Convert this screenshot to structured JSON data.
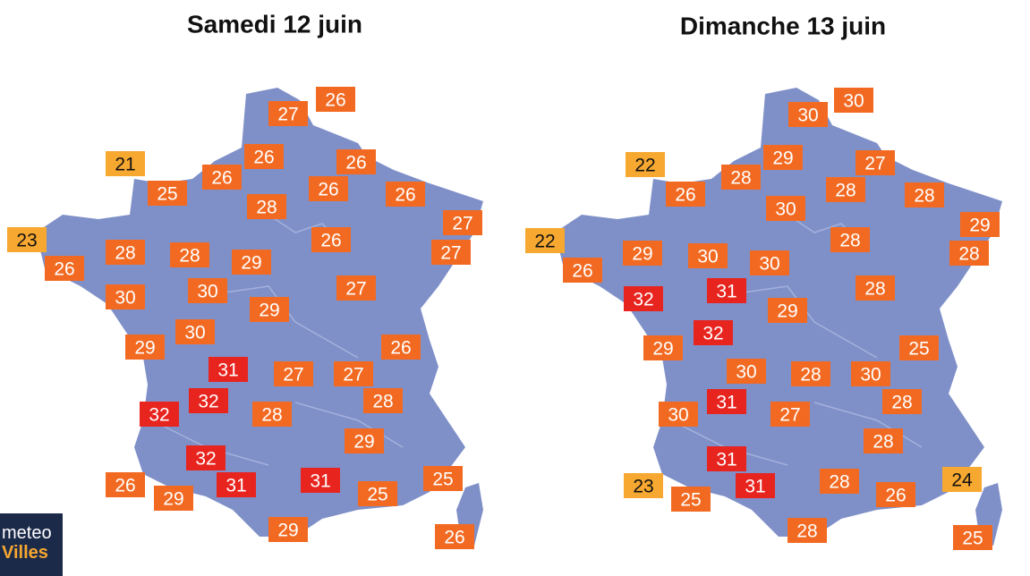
{
  "maps": [
    {
      "title": "Samedi 12 juin",
      "labels": [
        {
          "value": 26,
          "color": "#f26a22"
        },
        {
          "value": 27,
          "color": "#f26a22"
        },
        {
          "value": 21,
          "color": "#f7a830"
        },
        {
          "value": 26,
          "color": "#f26a22"
        },
        {
          "value": 26,
          "color": "#f26a22"
        },
        {
          "value": 25,
          "color": "#f26a22"
        },
        {
          "value": 26,
          "color": "#f26a22"
        },
        {
          "value": 26,
          "color": "#f26a22"
        },
        {
          "value": 26,
          "color": "#f26a22"
        },
        {
          "value": 28,
          "color": "#f26a22"
        },
        {
          "value": 27,
          "color": "#f26a22"
        },
        {
          "value": 23,
          "color": "#f7a830"
        },
        {
          "value": 26,
          "color": "#f26a22"
        },
        {
          "value": 27,
          "color": "#f26a22"
        },
        {
          "value": 28,
          "color": "#f26a22"
        },
        {
          "value": 28,
          "color": "#f26a22"
        },
        {
          "value": 29,
          "color": "#f26a22"
        },
        {
          "value": 26,
          "color": "#f26a22"
        },
        {
          "value": 30,
          "color": "#f26a22"
        },
        {
          "value": 30,
          "color": "#f26a22"
        },
        {
          "value": 27,
          "color": "#f26a22"
        },
        {
          "value": 29,
          "color": "#f26a22"
        },
        {
          "value": 30,
          "color": "#f26a22"
        },
        {
          "value": 29,
          "color": "#f26a22"
        },
        {
          "value": 26,
          "color": "#f26a22"
        },
        {
          "value": 31,
          "color": "#e8241f"
        },
        {
          "value": 27,
          "color": "#f26a22"
        },
        {
          "value": 27,
          "color": "#f26a22"
        },
        {
          "value": 32,
          "color": "#e8241f"
        },
        {
          "value": 28,
          "color": "#f26a22"
        },
        {
          "value": 32,
          "color": "#e8241f"
        },
        {
          "value": 28,
          "color": "#f26a22"
        },
        {
          "value": 29,
          "color": "#f26a22"
        },
        {
          "value": 32,
          "color": "#e8241f"
        },
        {
          "value": 31,
          "color": "#e8241f"
        },
        {
          "value": 31,
          "color": "#e8241f"
        },
        {
          "value": 25,
          "color": "#f26a22"
        },
        {
          "value": 26,
          "color": "#f26a22"
        },
        {
          "value": 29,
          "color": "#f26a22"
        },
        {
          "value": 25,
          "color": "#f26a22"
        },
        {
          "value": 29,
          "color": "#f26a22"
        },
        {
          "value": 26,
          "color": "#f26a22"
        }
      ]
    },
    {
      "title": "Dimanche 13 juin",
      "labels": [
        {
          "value": 30,
          "color": "#f26a22"
        },
        {
          "value": 30,
          "color": "#f26a22"
        },
        {
          "value": 22,
          "color": "#f7a830"
        },
        {
          "value": 29,
          "color": "#f26a22"
        },
        {
          "value": 27,
          "color": "#f26a22"
        },
        {
          "value": 28,
          "color": "#f26a22"
        },
        {
          "value": 26,
          "color": "#f26a22"
        },
        {
          "value": 28,
          "color": "#f26a22"
        },
        {
          "value": 28,
          "color": "#f26a22"
        },
        {
          "value": 30,
          "color": "#f26a22"
        },
        {
          "value": 29,
          "color": "#f26a22"
        },
        {
          "value": 22,
          "color": "#f7a830"
        },
        {
          "value": 28,
          "color": "#f26a22"
        },
        {
          "value": 28,
          "color": "#f26a22"
        },
        {
          "value": 29,
          "color": "#f26a22"
        },
        {
          "value": 30,
          "color": "#f26a22"
        },
        {
          "value": 30,
          "color": "#f26a22"
        },
        {
          "value": 26,
          "color": "#f26a22"
        },
        {
          "value": 32,
          "color": "#e8241f"
        },
        {
          "value": 31,
          "color": "#e8241f"
        },
        {
          "value": 28,
          "color": "#f26a22"
        },
        {
          "value": 29,
          "color": "#f26a22"
        },
        {
          "value": 32,
          "color": "#e8241f"
        },
        {
          "value": 29,
          "color": "#f26a22"
        },
        {
          "value": 25,
          "color": "#f26a22"
        },
        {
          "value": 30,
          "color": "#f26a22"
        },
        {
          "value": 28,
          "color": "#f26a22"
        },
        {
          "value": 30,
          "color": "#f26a22"
        },
        {
          "value": 31,
          "color": "#e8241f"
        },
        {
          "value": 28,
          "color": "#f26a22"
        },
        {
          "value": 30,
          "color": "#f26a22"
        },
        {
          "value": 27,
          "color": "#f26a22"
        },
        {
          "value": 28,
          "color": "#f26a22"
        },
        {
          "value": 31,
          "color": "#e8241f"
        },
        {
          "value": 31,
          "color": "#e8241f"
        },
        {
          "value": 24,
          "color": "#f7a830"
        },
        {
          "value": 23,
          "color": "#f7a830"
        },
        {
          "value": 28,
          "color": "#f26a22"
        },
        {
          "value": 25,
          "color": "#f26a22"
        },
        {
          "value": 26,
          "color": "#f26a22"
        },
        {
          "value": 28,
          "color": "#f26a22"
        },
        {
          "value": 25,
          "color": "#f26a22"
        }
      ]
    }
  ],
  "logo": {
    "line1": "meteo",
    "line2": "Villes"
  }
}
